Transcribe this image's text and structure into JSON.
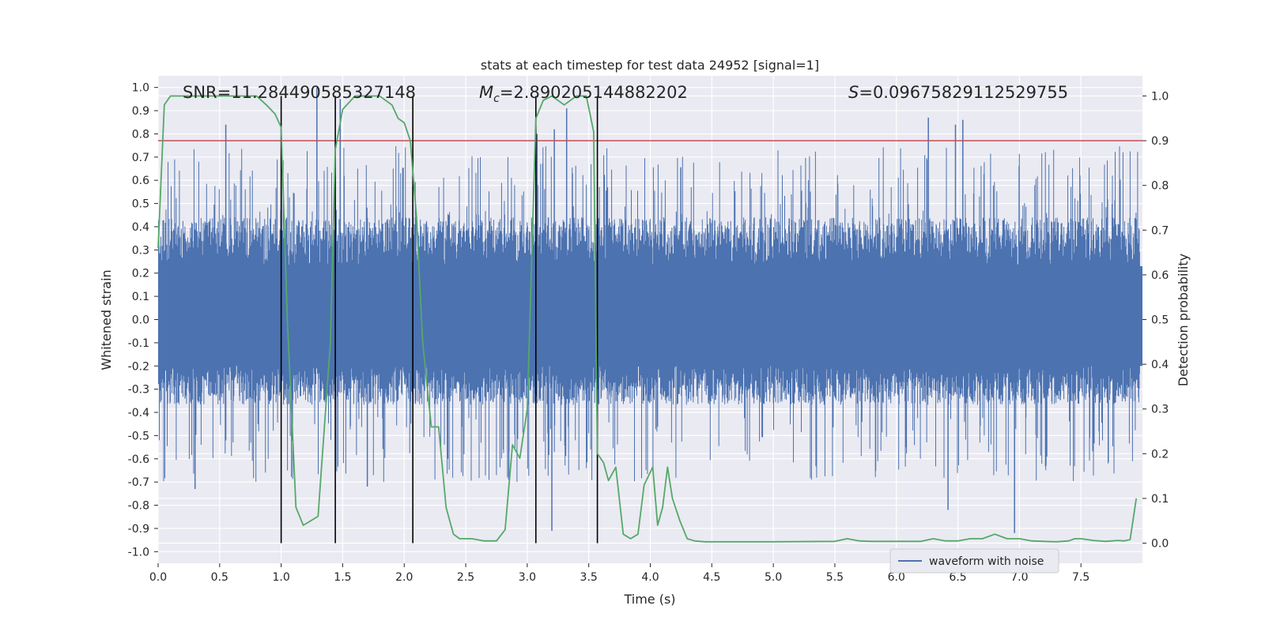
{
  "chart_data": {
    "type": "line",
    "title": "stats at each timestep for test data 24952 [signal=1]",
    "xlabel": "Time (s)",
    "ylabel": "Whitened strain",
    "y2label": "Detection probability",
    "xlim": [
      0.0,
      8.0
    ],
    "ylim": [
      -1.05,
      1.05
    ],
    "y2lim": [
      -0.045,
      1.045
    ],
    "xticks": [
      "0.0",
      "0.5",
      "1.0",
      "1.5",
      "2.0",
      "2.5",
      "3.0",
      "3.5",
      "4.0",
      "4.5",
      "5.0",
      "5.5",
      "6.0",
      "6.5",
      "7.0",
      "7.5"
    ],
    "yticks": [
      "-1.0",
      "-0.9",
      "-0.8",
      "-0.7",
      "-0.6",
      "-0.5",
      "-0.4",
      "-0.3",
      "-0.2",
      "-0.1",
      "0.0",
      "0.1",
      "0.2",
      "0.3",
      "0.4",
      "0.5",
      "0.6",
      "0.7",
      "0.8",
      "0.9",
      "1.0"
    ],
    "y2ticks": [
      "0.0",
      "0.1",
      "0.2",
      "0.3",
      "0.4",
      "0.5",
      "0.6",
      "0.7",
      "0.8",
      "0.9",
      "1.0"
    ],
    "annotations": {
      "snr": "SNR=11.284490585327148",
      "mc_symbol": "M",
      "mc_sub": "c",
      "mc_value": "=2.890205144882202",
      "s_symbol": "S",
      "s_value": "=0.09675829112529755"
    },
    "threshold": 0.9,
    "event_lines_x": [
      1.0,
      1.44,
      2.07,
      3.07,
      3.57
    ],
    "series": [
      {
        "name": "waveform with noise",
        "color": "#4c72b0",
        "envelope_upper": 0.42,
        "envelope_lower": -0.35,
        "peaks": [
          {
            "x": 0.55,
            "y": 0.84
          },
          {
            "x": 1.29,
            "y": 1.0
          },
          {
            "x": 1.48,
            "y": 0.95
          },
          {
            "x": 3.08,
            "y": 0.8
          },
          {
            "x": 3.22,
            "y": 0.82
          },
          {
            "x": 3.32,
            "y": 0.91
          },
          {
            "x": 6.26,
            "y": 0.87
          },
          {
            "x": 6.48,
            "y": 0.84
          },
          {
            "x": 6.54,
            "y": 0.86
          },
          {
            "x": 2.85,
            "y": -0.69
          },
          {
            "x": 3.2,
            "y": -0.91
          },
          {
            "x": 6.42,
            "y": -0.82
          },
          {
            "x": 6.96,
            "y": -0.92
          },
          {
            "x": 0.3,
            "y": -0.73
          },
          {
            "x": 1.7,
            "y": -0.72
          }
        ]
      },
      {
        "name": "detection probability",
        "color": "#55a868",
        "axis": "right",
        "x": [
          0.0,
          0.05,
          0.1,
          0.2,
          0.3,
          0.4,
          0.5,
          0.6,
          0.7,
          0.8,
          0.88,
          0.95,
          1.0,
          1.05,
          1.12,
          1.18,
          1.3,
          1.4,
          1.44,
          1.5,
          1.6,
          1.7,
          1.8,
          1.9,
          1.95,
          2.0,
          2.05,
          2.1,
          2.15,
          2.22,
          2.28,
          2.34,
          2.4,
          2.45,
          2.55,
          2.65,
          2.75,
          2.82,
          2.88,
          2.94,
          3.0,
          3.07,
          3.13,
          3.2,
          3.3,
          3.4,
          3.48,
          3.54,
          3.57,
          3.62,
          3.66,
          3.72,
          3.78,
          3.84,
          3.9,
          3.95,
          4.02,
          4.06,
          4.1,
          4.14,
          4.18,
          4.24,
          4.3,
          4.36,
          4.44,
          5.0,
          5.5,
          5.6,
          5.7,
          5.8,
          6.0,
          6.2,
          6.3,
          6.4,
          6.5,
          6.6,
          6.7,
          6.8,
          6.9,
          7.0,
          7.1,
          7.2,
          7.3,
          7.4,
          7.45,
          7.5,
          7.6,
          7.7,
          7.8,
          7.85,
          7.9,
          7.95
        ],
        "y": [
          0.66,
          0.98,
          1.0,
          1.0,
          1.0,
          1.0,
          1.0,
          1.0,
          1.0,
          1.0,
          0.98,
          0.96,
          0.93,
          0.5,
          0.08,
          0.04,
          0.06,
          0.45,
          0.88,
          0.97,
          1.0,
          1.0,
          1.0,
          0.98,
          0.95,
          0.94,
          0.9,
          0.73,
          0.45,
          0.26,
          0.26,
          0.08,
          0.02,
          0.01,
          0.01,
          0.005,
          0.005,
          0.03,
          0.22,
          0.19,
          0.3,
          0.95,
          0.99,
          1.0,
          0.98,
          1.0,
          1.0,
          0.92,
          0.2,
          0.18,
          0.14,
          0.17,
          0.02,
          0.01,
          0.02,
          0.13,
          0.17,
          0.04,
          0.08,
          0.17,
          0.1,
          0.05,
          0.01,
          0.005,
          0.003,
          0.003,
          0.004,
          0.01,
          0.005,
          0.004,
          0.004,
          0.004,
          0.01,
          0.005,
          0.005,
          0.01,
          0.01,
          0.02,
          0.01,
          0.01,
          0.005,
          0.004,
          0.003,
          0.005,
          0.01,
          0.01,
          0.006,
          0.004,
          0.006,
          0.005,
          0.008,
          0.1
        ]
      }
    ],
    "legend": {
      "placement": "lower-right",
      "entries": [
        "waveform with noise"
      ]
    }
  }
}
